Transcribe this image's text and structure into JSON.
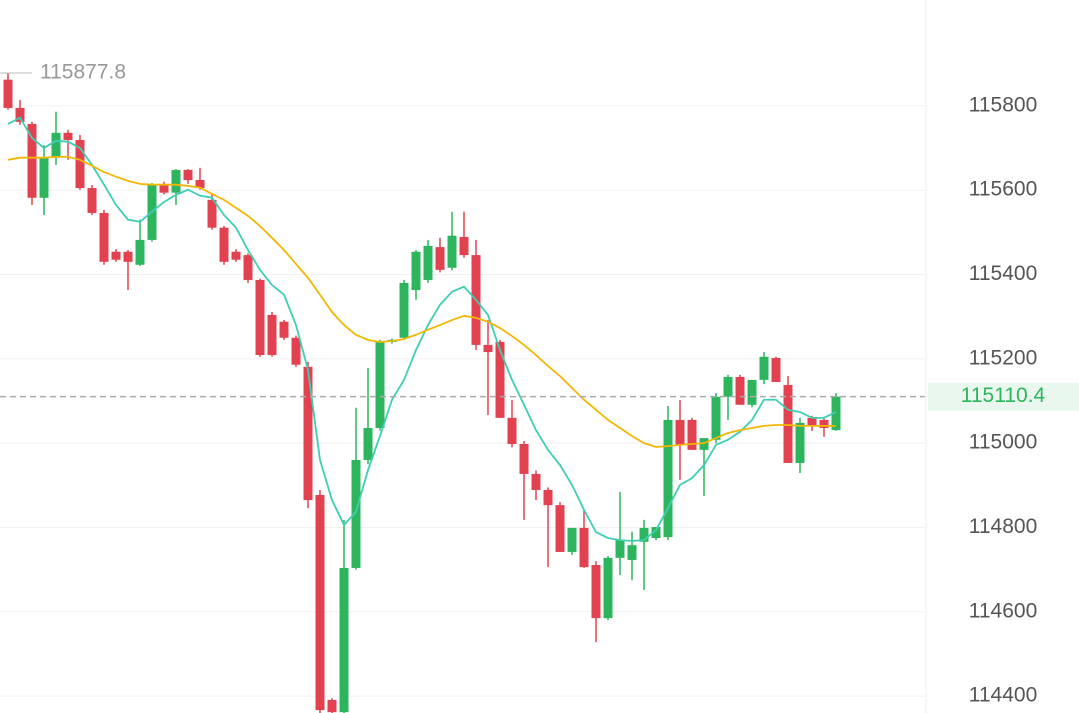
{
  "chart_data": {
    "type": "candlestick",
    "open": [
      115862,
      115795,
      115757,
      115582,
      115677,
      115736,
      115719,
      115605,
      115546,
      115454,
      115454,
      115423,
      115482,
      115613,
      115594,
      115648,
      115624,
      115577,
      115511,
      115454,
      115446,
      115387,
      115304,
      115288,
      115250,
      115181,
      114877,
      114391,
      114362,
      114704,
      114960,
      115036,
      115240,
      115250,
      115363,
      115387,
      115465,
      115416,
      115489,
      115446,
      115233,
      115240,
      115060,
      114998,
      114927,
      114889,
      114853,
      114742,
      114799,
      114711,
      114585,
      114728,
      114723,
      114766,
      114775,
      114777,
      115055,
      115055,
      114984,
      115008,
      115110,
      115157,
      115091,
      115150,
      115202,
      115138,
      114953,
      115060,
      115055,
      115031
    ],
    "high": [
      115877.8,
      115814,
      115762,
      115707,
      115786,
      115743,
      115731,
      115612,
      115553,
      115460,
      115458,
      115530,
      115617,
      115620,
      115650,
      115650,
      115653,
      115590,
      115515,
      115460,
      115450,
      115390,
      115311,
      115292,
      115255,
      115193,
      114889,
      114395,
      114818,
      115084,
      115178,
      115245,
      115248,
      115387,
      115458,
      115482,
      115487,
      115549,
      115549,
      115482,
      115292,
      115245,
      115102,
      115005,
      114935,
      114895,
      114860,
      114799,
      114842,
      114720,
      114732,
      114884,
      114790,
      114818,
      114801,
      115088,
      115102,
      115060,
      114998,
      115119,
      115162,
      115162,
      115150,
      115216,
      115205,
      115159,
      115060,
      115065,
      115060,
      115119
    ],
    "low": [
      115791,
      115755,
      115565,
      115541,
      115660,
      115672,
      115601,
      115541,
      115423,
      115430,
      115363,
      115420,
      115478,
      115590,
      115565,
      115615,
      115601,
      115506,
      115423,
      115430,
      115380,
      115205,
      115205,
      115245,
      115181,
      114846,
      114360,
      114360,
      114360,
      114700,
      114950,
      115030,
      115236,
      115245,
      115340,
      115380,
      115405,
      115410,
      115440,
      115221,
      115067,
      115060,
      114990,
      114818,
      114865,
      114706,
      114742,
      114735,
      114704,
      114528,
      114580,
      114687,
      114675,
      114652,
      114770,
      114770,
      114913,
      114984,
      114875,
      115000,
      115055,
      115091,
      115085,
      115140,
      115145,
      114953,
      114929,
      115029,
      115015,
      115029
    ],
    "close": [
      115795,
      115762,
      115582,
      115677,
      115736,
      115719,
      115605,
      115546,
      115430,
      115435,
      115430,
      115482,
      115613,
      115594,
      115648,
      115624,
      115605,
      115511,
      115430,
      115435,
      115387,
      115209,
      115209,
      115250,
      115186,
      114865,
      114367,
      114362,
      114704,
      114960,
      115036,
      115240,
      115245,
      115380,
      115454,
      115468,
      115411,
      115492,
      115446,
      115233,
      115216,
      115060,
      114998,
      114927,
      114889,
      114853,
      114742,
      114799,
      114706,
      114585,
      114728,
      114770,
      114758,
      114799,
      114801,
      115055,
      114996,
      114984,
      115012,
      115110,
      115157,
      115091,
      115150,
      115205,
      115145,
      114953,
      115048,
      115043,
      115036,
      115110.4
    ],
    "up_color": "#2db55d",
    "down_color": "#e2424f",
    "series": [
      {
        "color": "#3dcfb3",
        "values": [
          115757,
          115772,
          115724,
          115700,
          115717,
          115715,
          115700,
          115660,
          115613,
          115565,
          115530,
          115525,
          115549,
          115572,
          115589,
          115601,
          115587,
          115582,
          115541,
          115511,
          115458,
          115411,
          115375,
          115352,
          115280,
          115174,
          114960,
          114865,
          114806,
          114837,
          114936,
          115017,
          115103,
          115150,
          115221,
          115280,
          115328,
          115359,
          115371,
          115340,
          115304,
          115221,
          115150,
          115091,
          115031,
          114984,
          114948,
          114901,
          114842,
          114789,
          114775,
          114770,
          114768,
          114770,
          114794,
          114846,
          114901,
          114917,
          114948,
          114996,
          115008,
          115027,
          115055,
          115103,
          115103,
          115079,
          115074,
          115060,
          115060,
          115074
        ]
      },
      {
        "color": "#f2b705",
        "values": [
          115672,
          115677,
          115677,
          115677,
          115679,
          115679,
          115672,
          115658,
          115643,
          115632,
          115622,
          115615,
          115613,
          115613,
          115613,
          115610,
          115606,
          115591,
          115577,
          115558,
          115539,
          115515,
          115487,
          115458,
          115425,
          115392,
          115352,
          115311,
          115280,
          115257,
          115245,
          115240,
          115242,
          115247,
          115257,
          115269,
          115280,
          115292,
          115302,
          115297,
          115288,
          115273,
          115254,
          115233,
          115209,
          115183,
          115159,
          115131,
          115103,
          115079,
          115055,
          115036,
          115017,
          115000,
          114991,
          114993,
          114996,
          114998,
          115000,
          115012,
          115024,
          115031,
          115036,
          115041,
          115043,
          115043,
          115041,
          115041,
          115041,
          115041
        ]
      }
    ],
    "ylim": [
      114360,
      116051
    ],
    "yticks": [
      114400,
      114600,
      114800,
      115000,
      115200,
      115400,
      115600,
      115800
    ],
    "grid": true
  }
}
